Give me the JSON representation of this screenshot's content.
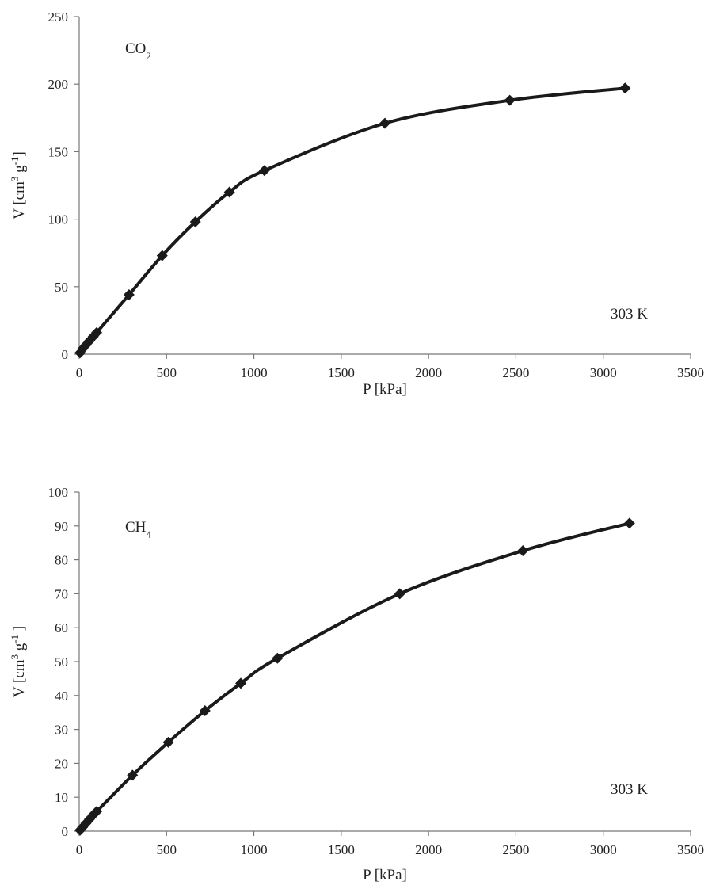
{
  "chart_data": [
    {
      "type": "line",
      "gas_label": {
        "main": "CO",
        "sub": "2"
      },
      "temperature_label": "303 K",
      "xlabel": "P [kPa]",
      "ylabel": {
        "pre": "V [cm",
        "sup1": "3",
        "mid": " g",
        "sup2": "-1",
        "post": "]"
      },
      "xlim": [
        0,
        3500
      ],
      "ylim": [
        0,
        250
      ],
      "x_ticks": [
        0,
        500,
        1000,
        1500,
        2000,
        2500,
        3000,
        3500
      ],
      "y_ticks": [
        0,
        50,
        100,
        150,
        200,
        250
      ],
      "grid": false,
      "series": [
        {
          "marker": "diamond",
          "color": "#1a1a1a",
          "x": [
            5,
            20,
            40,
            60,
            80,
            100,
            285,
            475,
            665,
            860,
            1060,
            1750,
            2465,
            3125
          ],
          "y": [
            1,
            4,
            7,
            10,
            13,
            16,
            44,
            73,
            98,
            120,
            136,
            171,
            188,
            197
          ]
        }
      ]
    },
    {
      "type": "line",
      "gas_label": {
        "main": "CH",
        "sub": "4"
      },
      "temperature_label": "303 K",
      "xlabel": "P [kPa]",
      "ylabel": {
        "pre": "V [cm",
        "sup1": "3",
        "mid": " g",
        "sup2": "-1",
        "post": " ]"
      },
      "xlim": [
        0,
        3500
      ],
      "ylim": [
        0,
        100
      ],
      "x_ticks": [
        0,
        500,
        1000,
        1500,
        2000,
        2500,
        3000,
        3500
      ],
      "y_ticks": [
        0,
        10,
        20,
        30,
        40,
        50,
        60,
        70,
        80,
        90,
        100
      ],
      "grid": false,
      "series": [
        {
          "marker": "diamond",
          "color": "#1a1a1a",
          "x": [
            5,
            20,
            40,
            60,
            80,
            100,
            305,
            510,
            720,
            925,
            1135,
            1835,
            2540,
            3150
          ],
          "y": [
            0.3,
            1.2,
            2.4,
            3.6,
            4.8,
            5.8,
            16.5,
            26.2,
            35.5,
            43.6,
            51,
            70,
            82.7,
            90.8
          ]
        }
      ]
    }
  ]
}
